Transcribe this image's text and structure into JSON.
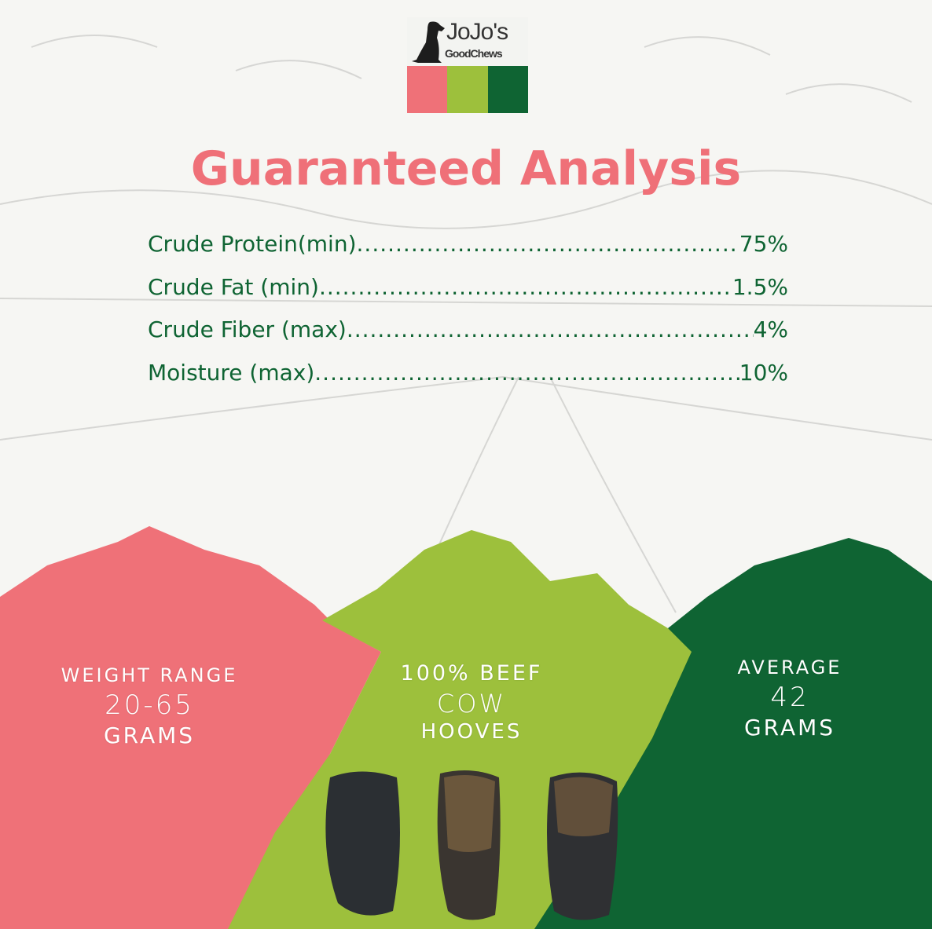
{
  "brand": {
    "logo_text": "JoJo's GoodChews",
    "colors": [
      "#ef7178",
      "#9dc03c",
      "#0f6433"
    ]
  },
  "title": "Guaranteed Analysis",
  "analysis": [
    {
      "label": "Crude Protein(min)",
      "value": "75%"
    },
    {
      "label": "Crude Fat (min)",
      "value": "1.5%"
    },
    {
      "label": "Crude Fiber (max)",
      "value": "4%"
    },
    {
      "label": "Moisture (max)",
      "value": "10%"
    }
  ],
  "panels": [
    {
      "line1": "WEIGHT RANGE",
      "line2": "20-65",
      "line3": "GRAMS",
      "color": "#ef7178"
    },
    {
      "line1": "100% BEEF",
      "line2": "COW",
      "line3": "HOOVES",
      "color": "#9dc03c"
    },
    {
      "line1": "AVERAGE",
      "line2": "42",
      "line3": "GRAMS",
      "color": "#0f6433"
    }
  ]
}
